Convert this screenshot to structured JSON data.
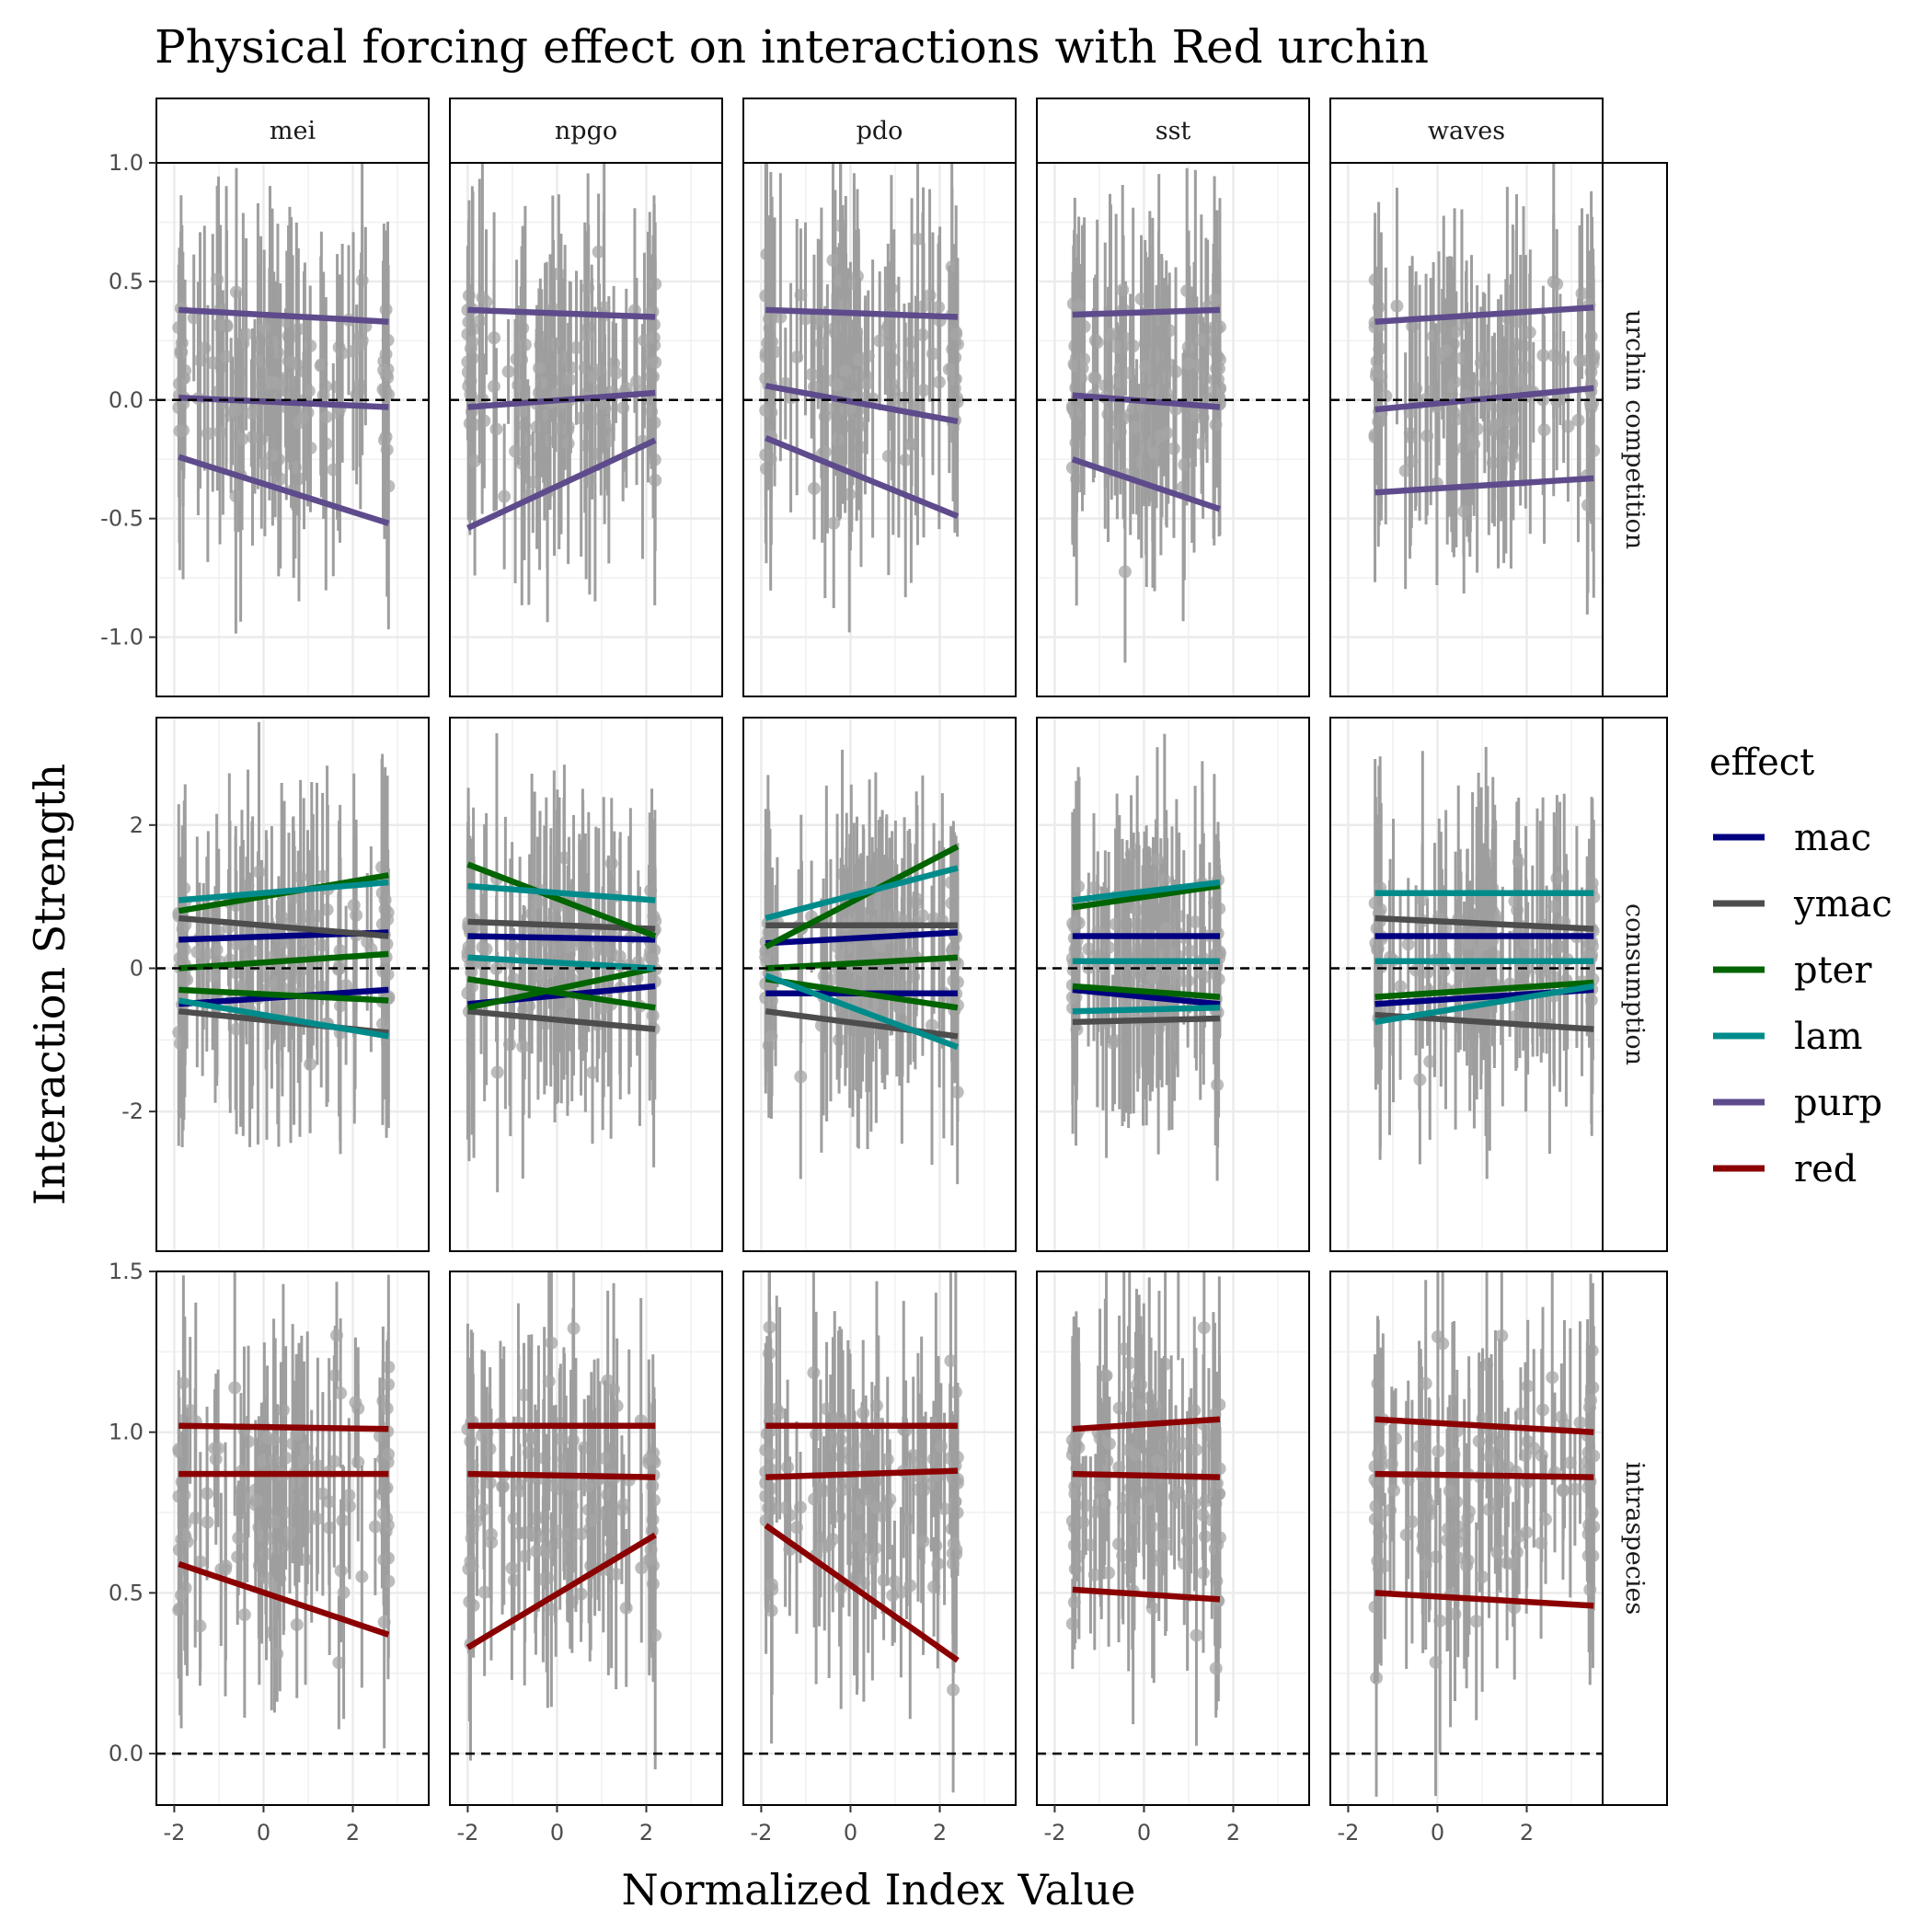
{
  "chart_data": {
    "type": "scatter",
    "title": "Physical forcing effect on interactions with Red urchin",
    "xlabel": "Normalized Index Value",
    "ylabel": "Interaction Strength",
    "facet_columns": [
      "mei",
      "npgo",
      "pdo",
      "sst",
      "waves"
    ],
    "facet_rows": [
      "urchin competition",
      "consumption",
      "intraspecies"
    ],
    "xlim": [
      -2.4,
      3.7
    ],
    "x_ticks": [
      -2,
      0,
      2
    ],
    "x_tick_labels": [
      "-2",
      "0",
      "2"
    ],
    "x_ranges": {
      "mei": [
        -1.9,
        2.8
      ],
      "npgo": [
        -2.0,
        2.2
      ],
      "pdo": [
        -1.9,
        2.4
      ],
      "sst": [
        -1.6,
        1.7
      ],
      "waves": [
        -1.4,
        3.5
      ]
    },
    "grid": true,
    "reference_line": 0,
    "rows": [
      {
        "name": "urchin competition",
        "ylim": [
          -1.25,
          1.0
        ],
        "y_ticks": [
          -1.0,
          -0.5,
          0.0,
          0.5,
          1.0
        ],
        "y_tick_labels": [
          "-1.0",
          "-0.5",
          "0.0",
          "0.5",
          "1.0"
        ],
        "point_mean": 0.08,
        "point_spread": 0.2,
        "error_half": 0.42
      },
      {
        "name": "consumption",
        "ylim": [
          -3.95,
          3.5
        ],
        "y_ticks": [
          -2,
          0,
          2
        ],
        "y_tick_labels": [
          "-2",
          "0",
          "2"
        ],
        "point_mean": 0.1,
        "point_spread": 0.55,
        "error_half": 1.4
      },
      {
        "name": "intraspecies",
        "ylim": [
          -0.16,
          1.5
        ],
        "y_ticks": [
          0.0,
          0.5,
          1.0,
          1.5
        ],
        "y_tick_labels": [
          "0.0",
          "0.5",
          "1.0",
          "1.5"
        ],
        "point_mean": 0.8,
        "point_spread": 0.2,
        "error_half": 0.28
      }
    ],
    "legend": {
      "title": "effect",
      "placement": "right",
      "entries": [
        {
          "name": "mac",
          "color": "#000080"
        },
        {
          "name": "ymac",
          "color": "#4d4d4d"
        },
        {
          "name": "pter",
          "color": "#006400"
        },
        {
          "name": "lam",
          "color": "#008b8b"
        },
        {
          "name": "purp",
          "color": "#5e4b8c"
        },
        {
          "name": "red",
          "color": "#8b0000"
        }
      ]
    },
    "point_color": "#9e9e9e",
    "trend_lines": {
      "urchin competition": {
        "mei": [
          {
            "effect": "purp",
            "y": [
              0.38,
              0.33
            ]
          },
          {
            "effect": "purp",
            "y": [
              0.01,
              -0.03
            ]
          },
          {
            "effect": "purp",
            "y": [
              -0.24,
              -0.52
            ]
          }
        ],
        "npgo": [
          {
            "effect": "purp",
            "y": [
              0.38,
              0.35
            ]
          },
          {
            "effect": "purp",
            "y": [
              -0.03,
              0.03
            ]
          },
          {
            "effect": "purp",
            "y": [
              -0.54,
              -0.17
            ]
          }
        ],
        "pdo": [
          {
            "effect": "purp",
            "y": [
              0.38,
              0.35
            ]
          },
          {
            "effect": "purp",
            "y": [
              0.06,
              -0.09
            ]
          },
          {
            "effect": "purp",
            "y": [
              -0.16,
              -0.49
            ]
          }
        ],
        "sst": [
          {
            "effect": "purp",
            "y": [
              0.36,
              0.38
            ]
          },
          {
            "effect": "purp",
            "y": [
              0.02,
              -0.03
            ]
          },
          {
            "effect": "purp",
            "y": [
              -0.25,
              -0.46
            ]
          }
        ],
        "waves": [
          {
            "effect": "purp",
            "y": [
              0.33,
              0.39
            ]
          },
          {
            "effect": "purp",
            "y": [
              -0.04,
              0.05
            ]
          },
          {
            "effect": "purp",
            "y": [
              -0.39,
              -0.33
            ]
          }
        ]
      },
      "consumption": {
        "mei": [
          {
            "effect": "mac",
            "y": [
              0.4,
              0.5
            ]
          },
          {
            "effect": "mac",
            "y": [
              -0.5,
              -0.3
            ]
          },
          {
            "effect": "ymac",
            "y": [
              0.7,
              0.45
            ]
          },
          {
            "effect": "ymac",
            "y": [
              -0.6,
              -0.9
            ]
          },
          {
            "effect": "pter",
            "y": [
              0.8,
              1.3
            ]
          },
          {
            "effect": "pter",
            "y": [
              0.0,
              0.2
            ]
          },
          {
            "effect": "pter",
            "y": [
              -0.3,
              -0.45
            ]
          },
          {
            "effect": "lam",
            "y": [
              0.95,
              1.2
            ]
          },
          {
            "effect": "lam",
            "y": [
              -0.45,
              -0.95
            ]
          }
        ],
        "npgo": [
          {
            "effect": "mac",
            "y": [
              0.45,
              0.4
            ]
          },
          {
            "effect": "mac",
            "y": [
              -0.5,
              -0.25
            ]
          },
          {
            "effect": "ymac",
            "y": [
              0.65,
              0.55
            ]
          },
          {
            "effect": "ymac",
            "y": [
              -0.6,
              -0.85
            ]
          },
          {
            "effect": "pter",
            "y": [
              1.45,
              0.45
            ]
          },
          {
            "effect": "pter",
            "y": [
              -0.15,
              -0.55
            ]
          },
          {
            "effect": "pter",
            "y": [
              -0.55,
              0.0
            ]
          },
          {
            "effect": "lam",
            "y": [
              1.15,
              0.95
            ]
          },
          {
            "effect": "lam",
            "y": [
              0.15,
              0.0
            ]
          }
        ],
        "pdo": [
          {
            "effect": "mac",
            "y": [
              0.35,
              0.5
            ]
          },
          {
            "effect": "mac",
            "y": [
              -0.35,
              -0.35
            ]
          },
          {
            "effect": "ymac",
            "y": [
              0.6,
              0.6
            ]
          },
          {
            "effect": "ymac",
            "y": [
              -0.6,
              -0.95
            ]
          },
          {
            "effect": "pter",
            "y": [
              0.3,
              1.7
            ]
          },
          {
            "effect": "pter",
            "y": [
              -0.15,
              -0.55
            ]
          },
          {
            "effect": "pter",
            "y": [
              0.0,
              0.15
            ]
          },
          {
            "effect": "lam",
            "y": [
              0.7,
              1.4
            ]
          },
          {
            "effect": "lam",
            "y": [
              -0.1,
              -1.1
            ]
          }
        ],
        "sst": [
          {
            "effect": "mac",
            "y": [
              0.45,
              0.45
            ]
          },
          {
            "effect": "mac",
            "y": [
              -0.3,
              -0.5
            ]
          },
          {
            "effect": "ymac",
            "y": [
              -0.75,
              -0.7
            ]
          },
          {
            "effect": "pter",
            "y": [
              0.85,
              1.15
            ]
          },
          {
            "effect": "pter",
            "y": [
              -0.25,
              -0.4
            ]
          },
          {
            "effect": "lam",
            "y": [
              0.95,
              1.2
            ]
          },
          {
            "effect": "lam",
            "y": [
              0.1,
              0.1
            ]
          },
          {
            "effect": "lam",
            "y": [
              -0.6,
              -0.55
            ]
          }
        ],
        "waves": [
          {
            "effect": "mac",
            "y": [
              0.45,
              0.45
            ]
          },
          {
            "effect": "mac",
            "y": [
              -0.5,
              -0.3
            ]
          },
          {
            "effect": "ymac",
            "y": [
              0.7,
              0.55
            ]
          },
          {
            "effect": "ymac",
            "y": [
              -0.65,
              -0.85
            ]
          },
          {
            "effect": "pter",
            "y": [
              -0.4,
              -0.2
            ]
          },
          {
            "effect": "lam",
            "y": [
              1.05,
              1.05
            ]
          },
          {
            "effect": "lam",
            "y": [
              0.1,
              0.1
            ]
          },
          {
            "effect": "lam",
            "y": [
              -0.75,
              -0.25
            ]
          }
        ]
      },
      "intraspecies": {
        "mei": [
          {
            "effect": "red",
            "y": [
              1.02,
              1.01
            ]
          },
          {
            "effect": "red",
            "y": [
              0.87,
              0.87
            ]
          },
          {
            "effect": "red",
            "y": [
              0.59,
              0.37
            ]
          }
        ],
        "npgo": [
          {
            "effect": "red",
            "y": [
              1.02,
              1.02
            ]
          },
          {
            "effect": "red",
            "y": [
              0.87,
              0.86
            ]
          },
          {
            "effect": "red",
            "y": [
              0.33,
              0.68
            ]
          }
        ],
        "pdo": [
          {
            "effect": "red",
            "y": [
              1.02,
              1.02
            ]
          },
          {
            "effect": "red",
            "y": [
              0.86,
              0.88
            ]
          },
          {
            "effect": "red",
            "y": [
              0.71,
              0.29
            ]
          }
        ],
        "sst": [
          {
            "effect": "red",
            "y": [
              1.01,
              1.04
            ]
          },
          {
            "effect": "red",
            "y": [
              0.87,
              0.86
            ]
          },
          {
            "effect": "red",
            "y": [
              0.51,
              0.48
            ]
          }
        ],
        "waves": [
          {
            "effect": "red",
            "y": [
              1.04,
              1.0
            ]
          },
          {
            "effect": "red",
            "y": [
              0.87,
              0.86
            ]
          },
          {
            "effect": "red",
            "y": [
              0.5,
              0.46
            ]
          }
        ]
      }
    }
  }
}
